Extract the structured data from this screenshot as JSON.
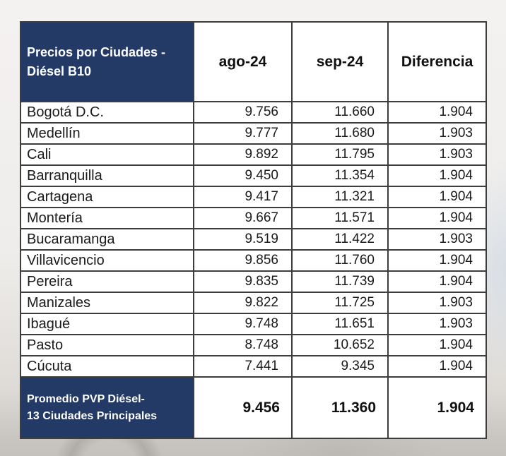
{
  "colors": {
    "header_bg": "#243a66",
    "header_text": "#ffffff",
    "border": "#3d3d3d",
    "cell_bg": "#ffffff",
    "value_text": "#1a1a1a"
  },
  "table": {
    "header": {
      "title_line1": "Precios por Ciudades -",
      "title_line2": "Diésel B10",
      "col_ago": "ago-24",
      "col_sep": "sep-24",
      "col_dif": "Diferencia"
    },
    "rows": [
      {
        "city": "Bogotá D.C.",
        "ago": "9.756",
        "sep": "11.660",
        "dif": "1.904"
      },
      {
        "city": "Medellín",
        "ago": "9.777",
        "sep": "11.680",
        "dif": "1.903"
      },
      {
        "city": "Cali",
        "ago": "9.892",
        "sep": "11.795",
        "dif": "1.903"
      },
      {
        "city": "Barranquilla",
        "ago": "9.450",
        "sep": "11.354",
        "dif": "1.904"
      },
      {
        "city": "Cartagena",
        "ago": "9.417",
        "sep": "11.321",
        "dif": "1.904"
      },
      {
        "city": "Montería",
        "ago": "9.667",
        "sep": "11.571",
        "dif": "1.904"
      },
      {
        "city": "Bucaramanga",
        "ago": "9.519",
        "sep": "11.422",
        "dif": "1.903"
      },
      {
        "city": "Villavicencio",
        "ago": "9.856",
        "sep": "11.760",
        "dif": "1.904"
      },
      {
        "city": "Pereira",
        "ago": "9.835",
        "sep": "11.739",
        "dif": "1.904"
      },
      {
        "city": "Manizales",
        "ago": "9.822",
        "sep": "11.725",
        "dif": "1.903"
      },
      {
        "city": "Ibagué",
        "ago": "9.748",
        "sep": "11.651",
        "dif": "1.903"
      },
      {
        "city": "Pasto",
        "ago": "8.748",
        "sep": "10.652",
        "dif": "1.904"
      },
      {
        "city": "Cúcuta",
        "ago": "7.441",
        "sep": "9.345",
        "dif": "1.904"
      }
    ],
    "footer": {
      "label_line1": "Promedio PVP Diésel-",
      "label_line2": "13 Ciudades Principales",
      "ago": "9.456",
      "sep": "11.360",
      "dif": "1.904"
    }
  },
  "chart_data": {
    "type": "table",
    "title": "Precios por Ciudades - Diésel B10",
    "columns": [
      "Precios por Ciudades - Diésel B10",
      "ago-24",
      "sep-24",
      "Diferencia"
    ],
    "rows": [
      [
        "Bogotá D.C.",
        "9.756",
        "11.660",
        "1.904"
      ],
      [
        "Medellín",
        "9.777",
        "11.680",
        "1.903"
      ],
      [
        "Cali",
        "9.892",
        "11.795",
        "1.903"
      ],
      [
        "Barranquilla",
        "9.450",
        "11.354",
        "1.904"
      ],
      [
        "Cartagena",
        "9.417",
        "11.321",
        "1.904"
      ],
      [
        "Montería",
        "9.667",
        "11.571",
        "1.904"
      ],
      [
        "Bucaramanga",
        "9.519",
        "11.422",
        "1.903"
      ],
      [
        "Villavicencio",
        "9.856",
        "11.760",
        "1.904"
      ],
      [
        "Pereira",
        "9.835",
        "11.739",
        "1.904"
      ],
      [
        "Manizales",
        "9.822",
        "11.725",
        "1.903"
      ],
      [
        "Ibagué",
        "9.748",
        "11.651",
        "1.903"
      ],
      [
        "Pasto",
        "8.748",
        "10.652",
        "1.904"
      ],
      [
        "Cúcuta",
        "7.441",
        "9.345",
        "1.904"
      ]
    ],
    "footer_row": [
      "Promedio PVP Diésel- 13 Ciudades Principales",
      "9.456",
      "11.360",
      "1.904"
    ]
  }
}
